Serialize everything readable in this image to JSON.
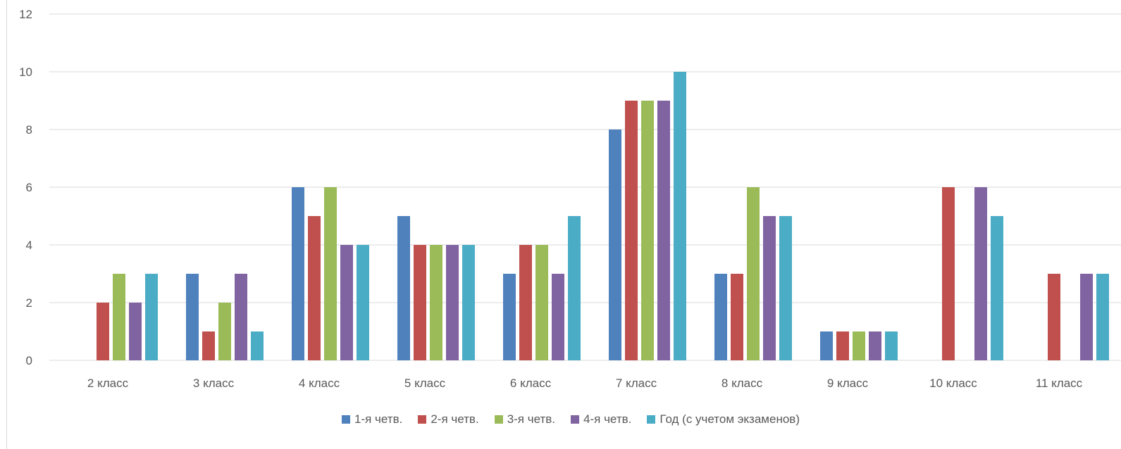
{
  "chart_data": {
    "type": "bar",
    "categories": [
      "2 класс",
      "3 класс",
      "4 класс",
      "5 класс",
      "6 класс",
      "7 класс",
      "8 класс",
      "9 класс",
      "10 класс",
      "11 класс"
    ],
    "series": [
      {
        "name": "1-я четв.",
        "color": "#4f81bd",
        "values": [
          0,
          3,
          6,
          5,
          3,
          8,
          3,
          1,
          0,
          0
        ]
      },
      {
        "name": "2-я четв.",
        "color": "#c0504d",
        "values": [
          2,
          1,
          5,
          4,
          4,
          9,
          3,
          1,
          6,
          3
        ]
      },
      {
        "name": "3-я четв.",
        "color": "#9bbb59",
        "values": [
          3,
          2,
          6,
          4,
          4,
          9,
          6,
          1,
          0,
          0
        ]
      },
      {
        "name": "4-я четв.",
        "color": "#8064a2",
        "values": [
          2,
          3,
          4,
          4,
          3,
          9,
          5,
          1,
          6,
          3
        ]
      },
      {
        "name": "Год (с учетом экзаменов)",
        "color": "#4bacc6",
        "values": [
          3,
          1,
          4,
          4,
          5,
          10,
          5,
          1,
          5,
          3
        ]
      }
    ],
    "ylim": [
      0,
      12
    ],
    "yticks": [
      "0",
      "2",
      "4",
      "6",
      "8",
      "10",
      "12"
    ],
    "grid": true,
    "legend_position": "bottom",
    "title": "",
    "xlabel": "",
    "ylabel": ""
  }
}
